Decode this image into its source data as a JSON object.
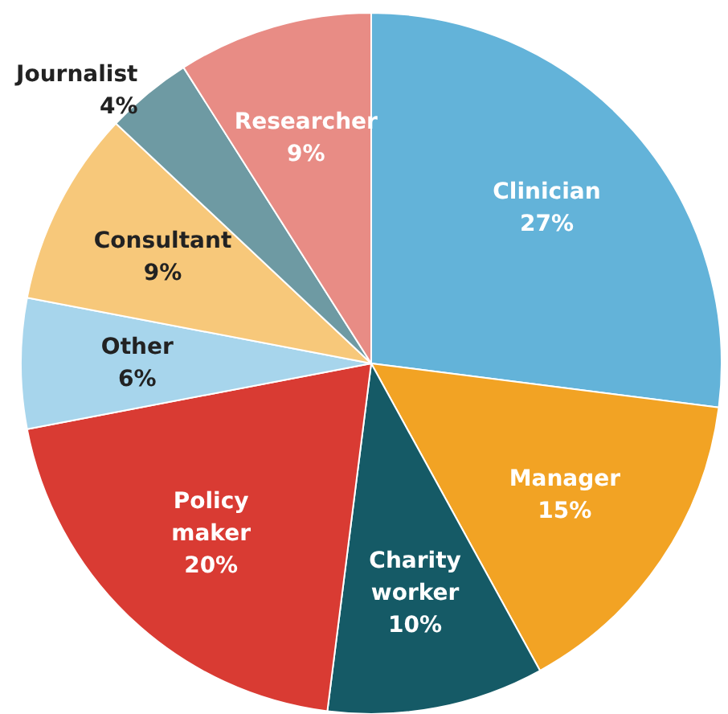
{
  "chart_data": {
    "type": "pie",
    "categories": [
      "Clinician",
      "Manager",
      "Charity worker",
      "Policy maker",
      "Other",
      "Consultant",
      "Journalist",
      "Researcher"
    ],
    "values": [
      27,
      15,
      10,
      20,
      6,
      9,
      4,
      9
    ],
    "value_labels": [
      "27%",
      "15%",
      "10%",
      "20%",
      "6%",
      "9%",
      "4%",
      "9%"
    ],
    "colors": [
      "#63b3d9",
      "#f2a324",
      "#155a66",
      "#d93b33",
      "#a7d5ec",
      "#f7c87a",
      "#6e9aa3",
      "#e88c85"
    ]
  }
}
